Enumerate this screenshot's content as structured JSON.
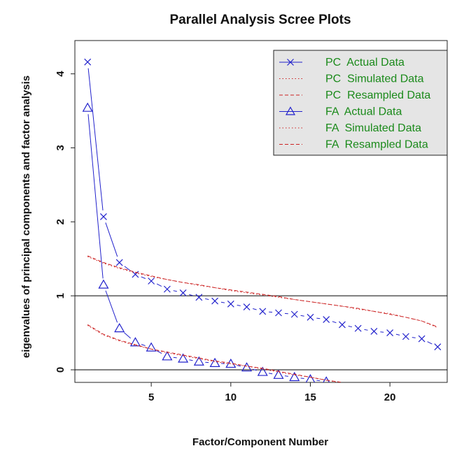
{
  "chart_data": {
    "type": "line",
    "title": "Parallel Analysis Scree Plots",
    "xlabel": "Factor/Component Number",
    "ylabel": "eigenvalues of principal components and factor analysis",
    "xlim": [
      0.2,
      23.6
    ],
    "ylim": [
      -0.17,
      4.45
    ],
    "x_ticks": [
      5,
      10,
      15,
      20
    ],
    "y_ticks": [
      0,
      1,
      2,
      3,
      4
    ],
    "reference_lines_y": [
      0,
      1
    ],
    "legend_position": "top-right",
    "colors": {
      "actual": "#2222cc",
      "simulated": "#cc2222",
      "resampled": "#cc2222",
      "legend_text": "#1a8a1a",
      "legend_bg": "#e5e5e5"
    },
    "legend": [
      {
        "label": "PC  Actual Data",
        "line": "solid",
        "color": "#2222cc",
        "marker": "x"
      },
      {
        "label": "PC  Simulated Data",
        "line": "dotted",
        "color": "#cc2222",
        "marker": ""
      },
      {
        "label": "PC  Resampled Data",
        "line": "dashed",
        "color": "#cc2222",
        "marker": ""
      },
      {
        "label": "FA  Actual Data",
        "line": "solid",
        "color": "#2222cc",
        "marker": "triangle"
      },
      {
        "label": "FA  Simulated Data",
        "line": "dotted",
        "color": "#cc2222",
        "marker": ""
      },
      {
        "label": "FA  Resampled Data",
        "line": "dashed",
        "color": "#cc2222",
        "marker": ""
      }
    ],
    "series": [
      {
        "name": "PC  Actual Data",
        "x": [
          1,
          2,
          3,
          4,
          5,
          6,
          7,
          8,
          9,
          10,
          11,
          12,
          13,
          14,
          15,
          16,
          17,
          18,
          19,
          20,
          21,
          22,
          23
        ],
        "values": [
          4.16,
          2.07,
          1.45,
          1.29,
          1.2,
          1.09,
          1.04,
          0.98,
          0.93,
          0.89,
          0.85,
          0.79,
          0.77,
          0.75,
          0.71,
          0.68,
          0.61,
          0.56,
          0.52,
          0.5,
          0.45,
          0.42,
          0.31
        ]
      },
      {
        "name": "PC  Simulated Data",
        "x": [
          1,
          2,
          3,
          4,
          5,
          6,
          7,
          8,
          9,
          10,
          11,
          12,
          13,
          14,
          15,
          16,
          17,
          18,
          19,
          20,
          21,
          22,
          23
        ],
        "values": [
          1.53,
          1.44,
          1.37,
          1.31,
          1.26,
          1.22,
          1.18,
          1.14,
          1.11,
          1.07,
          1.04,
          1.01,
          0.98,
          0.95,
          0.92,
          0.89,
          0.86,
          0.82,
          0.79,
          0.76,
          0.71,
          0.66,
          0.57
        ]
      },
      {
        "name": "PC  Resampled Data",
        "x": [
          1,
          2,
          3,
          4,
          5,
          6,
          7,
          8,
          9,
          10,
          11,
          12,
          13,
          14,
          15,
          16,
          17,
          18,
          19,
          20,
          21,
          22,
          23
        ],
        "values": [
          1.54,
          1.45,
          1.38,
          1.32,
          1.27,
          1.22,
          1.18,
          1.15,
          1.11,
          1.08,
          1.05,
          1.02,
          0.99,
          0.95,
          0.92,
          0.89,
          0.86,
          0.83,
          0.79,
          0.75,
          0.71,
          0.66,
          0.58
        ]
      },
      {
        "name": "FA  Actual Data",
        "x": [
          1,
          2,
          3,
          4,
          5,
          6,
          7,
          8,
          9,
          10,
          11,
          12,
          13,
          14,
          15,
          16
        ],
        "values": [
          3.54,
          1.15,
          0.56,
          0.37,
          0.3,
          0.18,
          0.15,
          0.11,
          0.09,
          0.08,
          0.03,
          -0.03,
          -0.07,
          -0.1,
          -0.13,
          -0.16
        ]
      },
      {
        "name": "FA  Simulated Data",
        "x": [
          1,
          2,
          3,
          4,
          5,
          6,
          7,
          8,
          9,
          10,
          11,
          12,
          13,
          14,
          15,
          16,
          17
        ],
        "values": [
          0.6,
          0.47,
          0.39,
          0.33,
          0.28,
          0.23,
          0.19,
          0.15,
          0.11,
          0.08,
          0.05,
          0.01,
          -0.03,
          -0.07,
          -0.1,
          -0.14,
          -0.18
        ]
      },
      {
        "name": "FA  Resampled Data",
        "x": [
          1,
          2,
          3,
          4,
          5,
          6,
          7,
          8,
          9,
          10,
          11,
          12,
          13,
          14,
          15,
          16,
          17
        ],
        "values": [
          0.61,
          0.48,
          0.4,
          0.34,
          0.28,
          0.24,
          0.2,
          0.16,
          0.12,
          0.09,
          0.05,
          0.02,
          -0.02,
          -0.06,
          -0.1,
          -0.14,
          -0.17
        ]
      }
    ]
  }
}
